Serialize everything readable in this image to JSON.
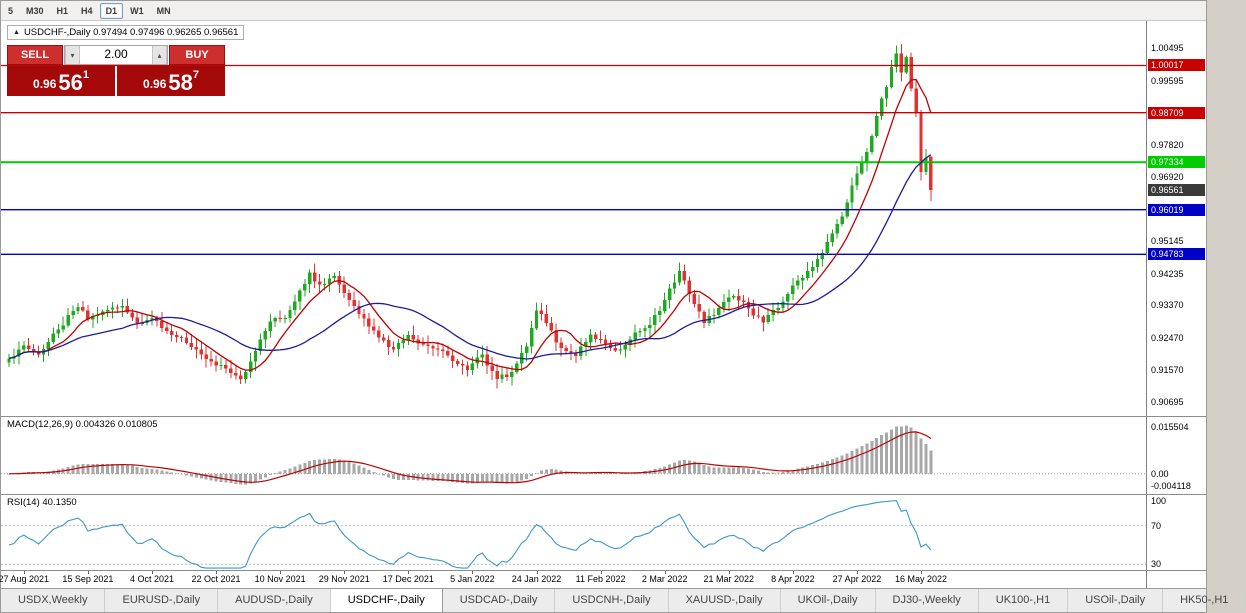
{
  "toolbar": {
    "timeframes": [
      {
        "label": "5",
        "active": false
      },
      {
        "label": "M30",
        "active": false
      },
      {
        "label": "H1",
        "active": false
      },
      {
        "label": "H4",
        "active": false
      },
      {
        "label": "D1",
        "active": true
      },
      {
        "label": "W1",
        "active": false
      },
      {
        "label": "MN",
        "active": false
      }
    ]
  },
  "legend": {
    "marker": "▲",
    "text": "USDCHF-,Daily 0.97494 0.97496 0.96265 0.96561"
  },
  "trade_panel": {
    "sell_label": "SELL",
    "buy_label": "BUY",
    "volume": "2.00",
    "down_glyph": "▾",
    "up_glyph": "▴",
    "sell_price": {
      "prefix": "0.96",
      "big": "56",
      "sup": "1"
    },
    "buy_price": {
      "prefix": "0.96",
      "big": "58",
      "sup": "7"
    }
  },
  "indicators": {
    "macd_label": "MACD(12,26,9) 0.004326 0.010805",
    "rsi_label": "RSI(14) 40.1350"
  },
  "bottom_tabs": [
    "USDX,Weekly",
    "EURUSD-,Daily",
    "AUDUSD-,Daily",
    "USDCHF-,Daily",
    "USDCAD-,Daily",
    "USDCNH-,Daily",
    "XAUUSD-,Daily",
    "UKOil-,Daily",
    "DJ30-,Weekly",
    "UK100-,H1",
    "USOil-,Daily",
    "HK50-,H1"
  ],
  "active_tab": "USDCHF-,Daily",
  "chart_data": {
    "type": "candlestick",
    "symbol": "USDCHF",
    "timeframe": "Daily",
    "last_candle": {
      "open": 0.97494,
      "high": 0.97496,
      "low": 0.96265,
      "close": 0.96561
    },
    "current_price": 0.96561,
    "y_range": [
      0.903,
      1.0125
    ],
    "y_ticks": [
      1.00495,
      0.99595,
      0.9782,
      0.9692,
      0.95145,
      0.94235,
      0.9337,
      0.9247,
      0.9157,
      0.90695
    ],
    "levels": [
      {
        "price": 1.00017,
        "color": "#c80000",
        "width": 1.3
      },
      {
        "price": 0.98709,
        "color": "#c80000",
        "width": 1.3
      },
      {
        "price": 0.97334,
        "color": "#00cc00",
        "width": 2
      },
      {
        "price": 0.96019,
        "color": "#0000c8",
        "width": 1.3
      },
      {
        "price": 0.94783,
        "color": "#0000c8",
        "width": 1.3
      }
    ],
    "candle_count": 188,
    "candle_up_color": "#1eaa1e",
    "candle_down_color": "#e33030",
    "close_path": [
      [
        0,
        0.919
      ],
      [
        3,
        0.9225
      ],
      [
        6,
        0.92
      ],
      [
        10,
        0.927
      ],
      [
        14,
        0.9332
      ],
      [
        16,
        0.9298
      ],
      [
        19,
        0.932
      ],
      [
        23,
        0.9335
      ],
      [
        26,
        0.9288
      ],
      [
        29,
        0.9302
      ],
      [
        33,
        0.9255
      ],
      [
        36,
        0.9232
      ],
      [
        40,
        0.9188
      ],
      [
        44,
        0.9162
      ],
      [
        47,
        0.9132
      ],
      [
        50,
        0.921
      ],
      [
        53,
        0.9292
      ],
      [
        56,
        0.9302
      ],
      [
        59,
        0.9378
      ],
      [
        61,
        0.9428
      ],
      [
        63,
        0.9395
      ],
      [
        66,
        0.9418
      ],
      [
        69,
        0.9352
      ],
      [
        72,
        0.93
      ],
      [
        75,
        0.9248
      ],
      [
        78,
        0.9215
      ],
      [
        81,
        0.9255
      ],
      [
        84,
        0.9228
      ],
      [
        87,
        0.9215
      ],
      [
        90,
        0.9182
      ],
      [
        93,
        0.9158
      ],
      [
        96,
        0.92
      ],
      [
        99,
        0.9132
      ],
      [
        102,
        0.9152
      ],
      [
        105,
        0.9222
      ],
      [
        107,
        0.9322
      ],
      [
        109,
        0.9288
      ],
      [
        112,
        0.9218
      ],
      [
        115,
        0.9196
      ],
      [
        118,
        0.9256
      ],
      [
        121,
        0.923
      ],
      [
        124,
        0.9214
      ],
      [
        127,
        0.9262
      ],
      [
        130,
        0.9282
      ],
      [
        133,
        0.9352
      ],
      [
        136,
        0.9432
      ],
      [
        138,
        0.9368
      ],
      [
        141,
        0.9288
      ],
      [
        144,
        0.933
      ],
      [
        147,
        0.9362
      ],
      [
        150,
        0.9328
      ],
      [
        153,
        0.929
      ],
      [
        156,
        0.933
      ],
      [
        159,
        0.9392
      ],
      [
        162,
        0.9432
      ],
      [
        165,
        0.9482
      ],
      [
        168,
        0.9562
      ],
      [
        170,
        0.9622
      ],
      [
        172,
        0.9702
      ],
      [
        174,
        0.9762
      ],
      [
        176,
        0.9862
      ],
      [
        178,
        0.9942
      ],
      [
        180,
        1.0035
      ],
      [
        181,
        0.9982
      ],
      [
        182,
        1.0025
      ],
      [
        183,
        0.9938
      ],
      [
        184,
        0.9872
      ],
      [
        185,
        0.9706
      ],
      [
        186,
        0.9745
      ],
      [
        187,
        0.96561
      ]
    ],
    "moving_averages": [
      {
        "period": 8,
        "color": "#c00000"
      },
      {
        "period": 24,
        "color": "#1c1c9c"
      }
    ],
    "x_labels": [
      {
        "i": 3,
        "label": "27 Aug 2021"
      },
      {
        "i": 16,
        "label": "15 Sep 2021"
      },
      {
        "i": 29,
        "label": "4 Oct 2021"
      },
      {
        "i": 42,
        "label": "22 Oct 2021"
      },
      {
        "i": 55,
        "label": "10 Nov 2021"
      },
      {
        "i": 68,
        "label": "29 Nov 2021"
      },
      {
        "i": 81,
        "label": "17 Dec 2021"
      },
      {
        "i": 94,
        "label": "5 Jan 2022"
      },
      {
        "i": 107,
        "label": "24 Jan 2022"
      },
      {
        "i": 120,
        "label": "11 Feb 2022"
      },
      {
        "i": 133,
        "label": "2 Mar 2022"
      },
      {
        "i": 146,
        "label": "21 Mar 2022"
      },
      {
        "i": 159,
        "label": "8 Apr 2022"
      },
      {
        "i": 172,
        "label": "27 Apr 2022"
      },
      {
        "i": 185,
        "label": "16 May 2022"
      }
    ],
    "macd": {
      "label": "MACD(12,26,9)",
      "value": 0.004326,
      "signal": 0.010805,
      "range": [
        -0.0067,
        0.0188
      ],
      "ticks": [
        {
          "v": 0.015504,
          "label": "0.015504"
        },
        {
          "v": 0,
          "label": "0.00"
        },
        {
          "v": -0.004118,
          "label": "-0.004118"
        }
      ],
      "bar_color": "#a8a8a8",
      "signal_color": "#c00000"
    },
    "rsi": {
      "label": "RSI(14)",
      "value": 40.135,
      "range": [
        24,
        102
      ],
      "ticks": [
        {
          "v": 100,
          "label": "100"
        },
        {
          "v": 70,
          "label": "70"
        },
        {
          "v": 30,
          "label": "30"
        }
      ],
      "levels": [
        70,
        30
      ],
      "color": "#3c96d2"
    }
  }
}
